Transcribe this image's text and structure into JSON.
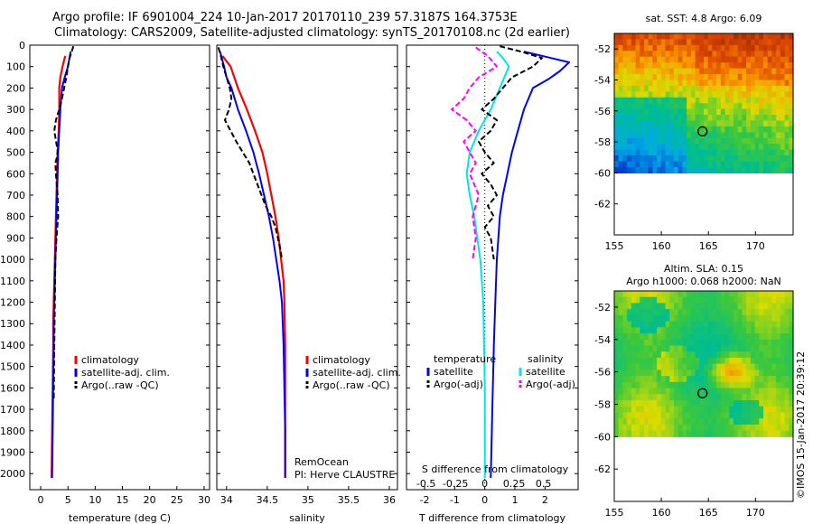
{
  "titles": {
    "line1": "Argo profile: IF 6901004_224 10-Jan-2017 20170110_239 57.3187S 164.3753E",
    "line2": "Climatology: CARS2009, Satellite-adjusted climatology: synTS_20170108.nc (2d earlier)"
  },
  "colors": {
    "climatology": "#ff0000",
    "satellite": "#0000ff",
    "argo": "#000000",
    "salinity_sat": "#00e5e5",
    "salinity_argo": "#ff00ff"
  },
  "chart_data": [
    {
      "type": "line",
      "panel": "temperature",
      "xlabel": "temperature (deg C)",
      "xlim": [
        -2,
        31
      ],
      "xticks": [
        "0",
        "5",
        "10",
        "15",
        "20",
        "25",
        "30"
      ],
      "ylim": [
        2075,
        0
      ],
      "yticks": [
        "0",
        "100",
        "200",
        "300",
        "400",
        "500",
        "600",
        "700",
        "800",
        "900",
        "1000",
        "1100",
        "1200",
        "1300",
        "1400",
        "1500",
        "1600",
        "1700",
        "1800",
        "1900",
        "2000"
      ],
      "legend": [
        "climatology",
        "satellite-adj. clim.",
        "Argo(..raw -QC)"
      ],
      "series": [
        {
          "name": "climatology",
          "x": [
            4.5,
            4.0,
            3.6,
            3.4,
            3.4,
            3.3,
            3.1,
            3.0,
            2.9,
            2.8,
            2.7,
            2.6,
            2.5,
            2.4,
            2.3,
            2.3,
            2.2,
            2.1,
            2.0
          ],
          "y": [
            50,
            100,
            150,
            200,
            300,
            400,
            500,
            600,
            700,
            800,
            900,
            1000,
            1100,
            1200,
            1300,
            1400,
            1600,
            1800,
            2020
          ]
        },
        {
          "name": "satellite-adj. clim.",
          "x": [
            5.5,
            5.0,
            4.4,
            3.9,
            3.6,
            3.4,
            3.2,
            3.1,
            3.0,
            2.9,
            2.8,
            2.7,
            2.6,
            2.5,
            2.4,
            2.4,
            2.3,
            2.2,
            2.1
          ],
          "y": [
            30,
            100,
            150,
            200,
            300,
            400,
            500,
            600,
            700,
            800,
            900,
            1000,
            1100,
            1200,
            1300,
            1400,
            1600,
            1800,
            2020
          ]
        },
        {
          "name": "Argo(..raw -QC)",
          "x": [
            6.0,
            5.7,
            5.3,
            5.0,
            4.7,
            4.3,
            3.9,
            3.4,
            2.8,
            2.5,
            2.7,
            2.9,
            3.1,
            3.0,
            2.7,
            2.8,
            3.1,
            3.2,
            2.9,
            2.7,
            2.6,
            2.5,
            2.4
          ],
          "y": [
            5,
            30,
            60,
            100,
            150,
            200,
            250,
            300,
            350,
            400,
            430,
            460,
            490,
            520,
            550,
            600,
            700,
            800,
            900,
            1000,
            1200,
            1400,
            1650
          ]
        }
      ]
    },
    {
      "type": "line",
      "panel": "salinity",
      "xlabel": "salinity",
      "xlim": [
        33.88,
        36.1
      ],
      "xticks": [
        "34",
        "34.5",
        "35",
        "35.5",
        "36"
      ],
      "ylim": [
        2075,
        0
      ],
      "legend": [
        "climatology",
        "satellite-adj. clim.",
        "Argo(..raw -QC)"
      ],
      "annotations": [
        "RemOcean",
        "PI: Herve CLAUSTRE"
      ],
      "series": [
        {
          "name": "climatology",
          "x": [
            33.95,
            34.05,
            34.14,
            34.25,
            34.35,
            34.44,
            34.5,
            34.55,
            34.6,
            34.64,
            34.67,
            34.7,
            34.71,
            34.72,
            34.72,
            34.72,
            34.72
          ],
          "y": [
            50,
            100,
            200,
            300,
            400,
            500,
            600,
            700,
            800,
            900,
            1000,
            1100,
            1200,
            1400,
            1600,
            1800,
            2020
          ]
        },
        {
          "name": "satellite-adj. clim.",
          "x": [
            33.92,
            33.97,
            34.0,
            34.06,
            34.14,
            34.24,
            34.33,
            34.4,
            34.46,
            34.52,
            34.57,
            34.61,
            34.65,
            34.68,
            34.7,
            34.71,
            34.72,
            34.72
          ],
          "y": [
            30,
            100,
            150,
            200,
            300,
            400,
            500,
            600,
            700,
            800,
            900,
            1000,
            1100,
            1200,
            1400,
            1600,
            1800,
            2020
          ]
        },
        {
          "name": "Argo(..raw -QC)",
          "x": [
            33.9,
            33.93,
            33.96,
            34.0,
            34.04,
            34.06,
            34.03,
            33.98,
            34.05,
            34.12,
            34.2,
            34.28,
            34.33,
            34.38,
            34.43,
            34.48,
            34.55,
            34.6,
            34.63,
            34.66,
            34.68
          ],
          "y": [
            10,
            50,
            100,
            150,
            200,
            250,
            300,
            350,
            400,
            450,
            500,
            550,
            600,
            650,
            700,
            750,
            800,
            850,
            900,
            950,
            1000
          ]
        }
      ]
    },
    {
      "type": "line",
      "panel": "difference",
      "xlabel": "T difference from climatology",
      "xlabel2": "S difference from climatology",
      "xlim": [
        -2.6,
        3.1
      ],
      "xticks": [
        "-2",
        "-1",
        "0",
        "1",
        "2"
      ],
      "xticks2": [
        "-0.5",
        "-0.25",
        "0",
        "0.25",
        "0.5"
      ],
      "ylim": [
        2075,
        0
      ],
      "legend_titles": [
        "temperature",
        "salinity"
      ],
      "legend": [
        "satellite",
        "Argo(-adj)",
        "satellite",
        "Argo(-adj)"
      ],
      "series": [
        {
          "name": "temperature satellite",
          "x": [
            1.3,
            2.2,
            2.8,
            2.5,
            2.1,
            1.6,
            1.3,
            1.1,
            0.9,
            0.75,
            0.6,
            0.5,
            0.45,
            0.4,
            0.35,
            0.3,
            0.25,
            0.2
          ],
          "y": [
            30,
            60,
            80,
            120,
            160,
            200,
            300,
            400,
            500,
            600,
            700,
            800,
            900,
            1000,
            1200,
            1400,
            1700,
            2020
          ]
        },
        {
          "name": "temperature Argo(-adj)",
          "x": [
            0.5,
            1.2,
            1.9,
            1.6,
            0.9,
            0.6,
            0.3,
            -0.1,
            0.4,
            0.2,
            -0.2,
            0.0,
            0.3,
            -0.1,
            0.2,
            0.4,
            0.1,
            0.3,
            0.0,
            0.2,
            0.3
          ],
          "y": [
            5,
            30,
            60,
            100,
            150,
            200,
            250,
            300,
            350,
            400,
            450,
            500,
            550,
            600,
            650,
            700,
            750,
            800,
            850,
            900,
            1000
          ]
        },
        {
          "name": "salinity satellite",
          "x": [
            0.4,
            0.6,
            0.8,
            0.5,
            0.2,
            -0.2,
            -0.5,
            -0.6,
            -0.5,
            -0.35,
            -0.25,
            -0.15,
            -0.05,
            0.0,
            0.0
          ],
          "y": [
            30,
            60,
            100,
            200,
            300,
            400,
            500,
            600,
            700,
            800,
            900,
            1000,
            1200,
            1600,
            2020
          ]
        },
        {
          "name": "salinity Argo(-adj)",
          "x": [
            -0.3,
            0.1,
            0.4,
            -0.2,
            -0.5,
            -0.7,
            -1.1,
            -0.6,
            -0.3,
            -0.7,
            -0.5,
            -0.3,
            -0.5,
            -0.2,
            -0.4,
            -0.3,
            -0.4
          ],
          "y": [
            10,
            50,
            100,
            150,
            200,
            250,
            300,
            350,
            400,
            450,
            500,
            550,
            600,
            700,
            800,
            900,
            1000
          ]
        }
      ]
    },
    {
      "type": "heatmap",
      "panel": "sst-map",
      "title": "sat. SST: 4.8 Argo: 6.09",
      "xlim": [
        155,
        174
      ],
      "ylim": [
        -64,
        -51
      ],
      "xticks": [
        "155",
        "160",
        "165",
        "170"
      ],
      "yticks": [
        "-52",
        "-54",
        "-56",
        "-58",
        "-60",
        "-62"
      ],
      "marker": {
        "lon": 164.3753,
        "lat": -57.3187
      }
    },
    {
      "type": "heatmap",
      "panel": "sla-map",
      "title": "Altim. SLA: 0.15",
      "subtitle": "Argo h1000: 0.068 h2000: NaN",
      "xlim": [
        155,
        174
      ],
      "ylim": [
        -64,
        -51
      ],
      "xticks": [
        "155",
        "160",
        "165",
        "170"
      ],
      "yticks": [
        "-52",
        "-54",
        "-56",
        "-58",
        "-60",
        "-62"
      ],
      "marker": {
        "lon": 164.3753,
        "lat": -57.3187
      },
      "side_label": "©IMOS 15-Jan-2017 20:39:12"
    }
  ]
}
